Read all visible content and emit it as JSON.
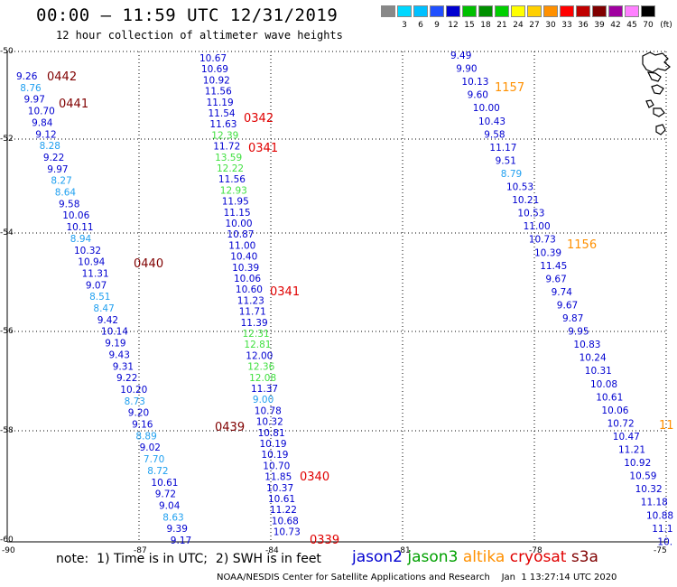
{
  "header": {
    "title": "00:00 – 11:59 UTC 12/31/2019",
    "subtitle": "12 hour collection of altimeter wave heights"
  },
  "legend": {
    "unit": "(ft)",
    "bins": [
      {
        "label": "",
        "color": "#888888"
      },
      {
        "label": "3",
        "color": "#00d8ff"
      },
      {
        "label": "6",
        "color": "#00c0ff"
      },
      {
        "label": "9",
        "color": "#2050ff"
      },
      {
        "label": "12",
        "color": "#0000d0"
      },
      {
        "label": "15",
        "color": "#00c000"
      },
      {
        "label": "18",
        "color": "#009000"
      },
      {
        "label": "21",
        "color": "#00d000"
      },
      {
        "label": "24",
        "color": "#ffff00"
      },
      {
        "label": "27",
        "color": "#ffd000"
      },
      {
        "label": "30",
        "color": "#ff9000"
      },
      {
        "label": "33",
        "color": "#ff0000"
      },
      {
        "label": "36",
        "color": "#c00000"
      },
      {
        "label": "39",
        "color": "#800000"
      },
      {
        "label": "42",
        "color": "#a000a0"
      },
      {
        "label": "45",
        "color": "#ff80ff"
      },
      {
        "label": "70",
        "color": "#000000"
      }
    ]
  },
  "map": {
    "lon_ticks": [
      "-90",
      "-87",
      "-84",
      "-81",
      "-78",
      "-75"
    ],
    "lat_ticks": [
      "-50",
      "-52",
      "-54",
      "-56",
      "-58",
      "-60"
    ],
    "tracks": [
      {
        "name": "track-a",
        "values": [
          {
            "t": "9.26",
            "c": "#0000d0"
          },
          {
            "t": "8.76",
            "c": "#20a0f0"
          },
          {
            "t": "9.97",
            "c": "#0000d0"
          },
          {
            "t": "10.70",
            "c": "#0000d0"
          },
          {
            "t": "9.84",
            "c": "#0000d0"
          },
          {
            "t": "9.12",
            "c": "#0000d0"
          },
          {
            "t": "8.28",
            "c": "#20a0f0"
          },
          {
            "t": "9.22",
            "c": "#0000d0"
          },
          {
            "t": "9.97",
            "c": "#0000d0"
          },
          {
            "t": "8.27",
            "c": "#20a0f0"
          },
          {
            "t": "8.64",
            "c": "#20a0f0"
          },
          {
            "t": "9.58",
            "c": "#0000d0"
          },
          {
            "t": "10.06",
            "c": "#0000d0"
          },
          {
            "t": "10.11",
            "c": "#0000d0"
          },
          {
            "t": "8.94",
            "c": "#20a0f0"
          },
          {
            "t": "10.32",
            "c": "#0000d0"
          },
          {
            "t": "10.94",
            "c": "#0000d0"
          },
          {
            "t": "11.31",
            "c": "#0000d0"
          },
          {
            "t": "9.07",
            "c": "#0000d0"
          },
          {
            "t": "8.51",
            "c": "#20a0f0"
          },
          {
            "t": "8.47",
            "c": "#20a0f0"
          },
          {
            "t": "9.42",
            "c": "#0000d0"
          },
          {
            "t": "10.14",
            "c": "#0000d0"
          },
          {
            "t": "9.19",
            "c": "#0000d0"
          },
          {
            "t": "9.43",
            "c": "#0000d0"
          },
          {
            "t": "9.31",
            "c": "#0000d0"
          },
          {
            "t": "9.22",
            "c": "#0000d0"
          },
          {
            "t": "10.20",
            "c": "#0000d0"
          },
          {
            "t": "8.73",
            "c": "#20a0f0"
          },
          {
            "t": "9.20",
            "c": "#0000d0"
          },
          {
            "t": "9.16",
            "c": "#0000d0"
          },
          {
            "t": "8.89",
            "c": "#20a0f0"
          },
          {
            "t": "9.02",
            "c": "#0000d0"
          },
          {
            "t": "7.70",
            "c": "#20a0f0"
          },
          {
            "t": "8.72",
            "c": "#20a0f0"
          },
          {
            "t": "10.61",
            "c": "#0000d0"
          },
          {
            "t": "9.72",
            "c": "#0000d0"
          },
          {
            "t": "9.04",
            "c": "#0000d0"
          },
          {
            "t": "8.63",
            "c": "#20a0f0"
          },
          {
            "t": "9.39",
            "c": "#0000d0"
          },
          {
            "t": "9.17",
            "c": "#0000d0"
          }
        ]
      },
      {
        "name": "track-b",
        "values": [
          {
            "t": "10.67",
            "c": "#0000d0"
          },
          {
            "t": "10.69",
            "c": "#0000d0"
          },
          {
            "t": "10.92",
            "c": "#0000d0"
          },
          {
            "t": "11.56",
            "c": "#0000d0"
          },
          {
            "t": "11.19",
            "c": "#0000d0"
          },
          {
            "t": "11.54",
            "c": "#0000d0"
          },
          {
            "t": "11.63",
            "c": "#0000d0"
          },
          {
            "t": "12.39",
            "c": "#40e040"
          },
          {
            "t": "11.72",
            "c": "#0000d0"
          },
          {
            "t": "13.59",
            "c": "#40e040"
          },
          {
            "t": "12.22",
            "c": "#40e040"
          },
          {
            "t": "11.56",
            "c": "#0000d0"
          },
          {
            "t": "12.93",
            "c": "#40e040"
          },
          {
            "t": "11.95",
            "c": "#0000d0"
          },
          {
            "t": "11.15",
            "c": "#0000d0"
          },
          {
            "t": "10.00",
            "c": "#0000d0"
          },
          {
            "t": "10.87",
            "c": "#0000d0"
          },
          {
            "t": "11.00",
            "c": "#0000d0"
          },
          {
            "t": "10.40",
            "c": "#0000d0"
          },
          {
            "t": "10.39",
            "c": "#0000d0"
          },
          {
            "t": "10.06",
            "c": "#0000d0"
          },
          {
            "t": "10.60",
            "c": "#0000d0"
          },
          {
            "t": "11.23",
            "c": "#0000d0"
          },
          {
            "t": "11.71",
            "c": "#0000d0"
          },
          {
            "t": "11.39",
            "c": "#0000d0"
          },
          {
            "t": "12.31",
            "c": "#40e040"
          },
          {
            "t": "12.81",
            "c": "#40e040"
          },
          {
            "t": "12.00",
            "c": "#0000d0"
          },
          {
            "t": "12.36",
            "c": "#40e040"
          },
          {
            "t": "12.08",
            "c": "#40e040"
          },
          {
            "t": "11.37",
            "c": "#0000d0"
          },
          {
            "t": "9.00",
            "c": "#20a0f0"
          },
          {
            "t": "10.78",
            "c": "#0000d0"
          },
          {
            "t": "10.32",
            "c": "#0000d0"
          },
          {
            "t": "10.81",
            "c": "#0000d0"
          },
          {
            "t": "10.19",
            "c": "#0000d0"
          },
          {
            "t": "10.19",
            "c": "#0000d0"
          },
          {
            "t": "10.70",
            "c": "#0000d0"
          },
          {
            "t": "11.85",
            "c": "#0000d0"
          },
          {
            "t": "10.37",
            "c": "#0000d0"
          },
          {
            "t": "10.61",
            "c": "#0000d0"
          },
          {
            "t": "11.22",
            "c": "#0000d0"
          },
          {
            "t": "10.68",
            "c": "#0000d0"
          },
          {
            "t": "10.73",
            "c": "#0000d0"
          }
        ]
      },
      {
        "name": "track-c",
        "values": [
          {
            "t": "9.49",
            "c": "#0000d0"
          },
          {
            "t": "9.90",
            "c": "#0000d0"
          },
          {
            "t": "10.13",
            "c": "#0000d0"
          },
          {
            "t": "9.60",
            "c": "#0000d0"
          },
          {
            "t": "10.00",
            "c": "#0000d0"
          },
          {
            "t": "10.43",
            "c": "#0000d0"
          },
          {
            "t": "9.58",
            "c": "#0000d0"
          },
          {
            "t": "11.17",
            "c": "#0000d0"
          },
          {
            "t": "9.51",
            "c": "#0000d0"
          },
          {
            "t": "8.79",
            "c": "#20a0f0"
          },
          {
            "t": "10.53",
            "c": "#0000d0"
          },
          {
            "t": "10.21",
            "c": "#0000d0"
          },
          {
            "t": "10.53",
            "c": "#0000d0"
          },
          {
            "t": "11.00",
            "c": "#0000d0"
          },
          {
            "t": "10.73",
            "c": "#0000d0"
          },
          {
            "t": "10.39",
            "c": "#0000d0"
          },
          {
            "t": "11.45",
            "c": "#0000d0"
          },
          {
            "t": "9.67",
            "c": "#0000d0"
          },
          {
            "t": "9.74",
            "c": "#0000d0"
          },
          {
            "t": "9.67",
            "c": "#0000d0"
          },
          {
            "t": "9.87",
            "c": "#0000d0"
          },
          {
            "t": "9.95",
            "c": "#0000d0"
          },
          {
            "t": "10.83",
            "c": "#0000d0"
          },
          {
            "t": "10.24",
            "c": "#0000d0"
          },
          {
            "t": "10.31",
            "c": "#0000d0"
          },
          {
            "t": "10.08",
            "c": "#0000d0"
          },
          {
            "t": "10.61",
            "c": "#0000d0"
          },
          {
            "t": "10.06",
            "c": "#0000d0"
          },
          {
            "t": "10.72",
            "c": "#0000d0"
          },
          {
            "t": "10.47",
            "c": "#0000d0"
          },
          {
            "t": "11.21",
            "c": "#0000d0"
          },
          {
            "t": "10.92",
            "c": "#0000d0"
          },
          {
            "t": "10.59",
            "c": "#0000d0"
          },
          {
            "t": "10.32",
            "c": "#0000d0"
          },
          {
            "t": "11.18",
            "c": "#0000d0"
          },
          {
            "t": "10.88",
            "c": "#0000d0"
          },
          {
            "t": "11.1",
            "c": "#0000d0"
          },
          {
            "t": "10.",
            "c": "#0000d0"
          }
        ]
      }
    ],
    "time_labels": [
      {
        "t": "0442",
        "c": "#800000"
      },
      {
        "t": "0441",
        "c": "#800000"
      },
      {
        "t": "0440",
        "c": "#800000"
      },
      {
        "t": "0439",
        "c": "#800000"
      },
      {
        "t": "0342",
        "c": "#e00000"
      },
      {
        "t": "0341",
        "c": "#e00000"
      },
      {
        "t": "0341",
        "c": "#e00000"
      },
      {
        "t": "0340",
        "c": "#e00000"
      },
      {
        "t": "0339",
        "c": "#e00000"
      },
      {
        "t": "1157",
        "c": "#ff9000"
      },
      {
        "t": "1156",
        "c": "#ff9000"
      },
      {
        "t": "11",
        "c": "#ff9000"
      }
    ]
  },
  "footer": {
    "note": "note:  1) Time is in UTC;  2) SWH is in feet",
    "satellites": [
      {
        "name": "jason2",
        "color": "#0000d0"
      },
      {
        "name": "jason3",
        "color": "#00a000"
      },
      {
        "name": "altika",
        "color": "#ff9000"
      },
      {
        "name": "cryosat",
        "color": "#e00000"
      },
      {
        "name": "s3a",
        "color": "#800000"
      }
    ],
    "credit": "NOAA/NESDIS Center for Satellite Applications and Research    Jan  1 13:27:14 UTC 2020"
  }
}
